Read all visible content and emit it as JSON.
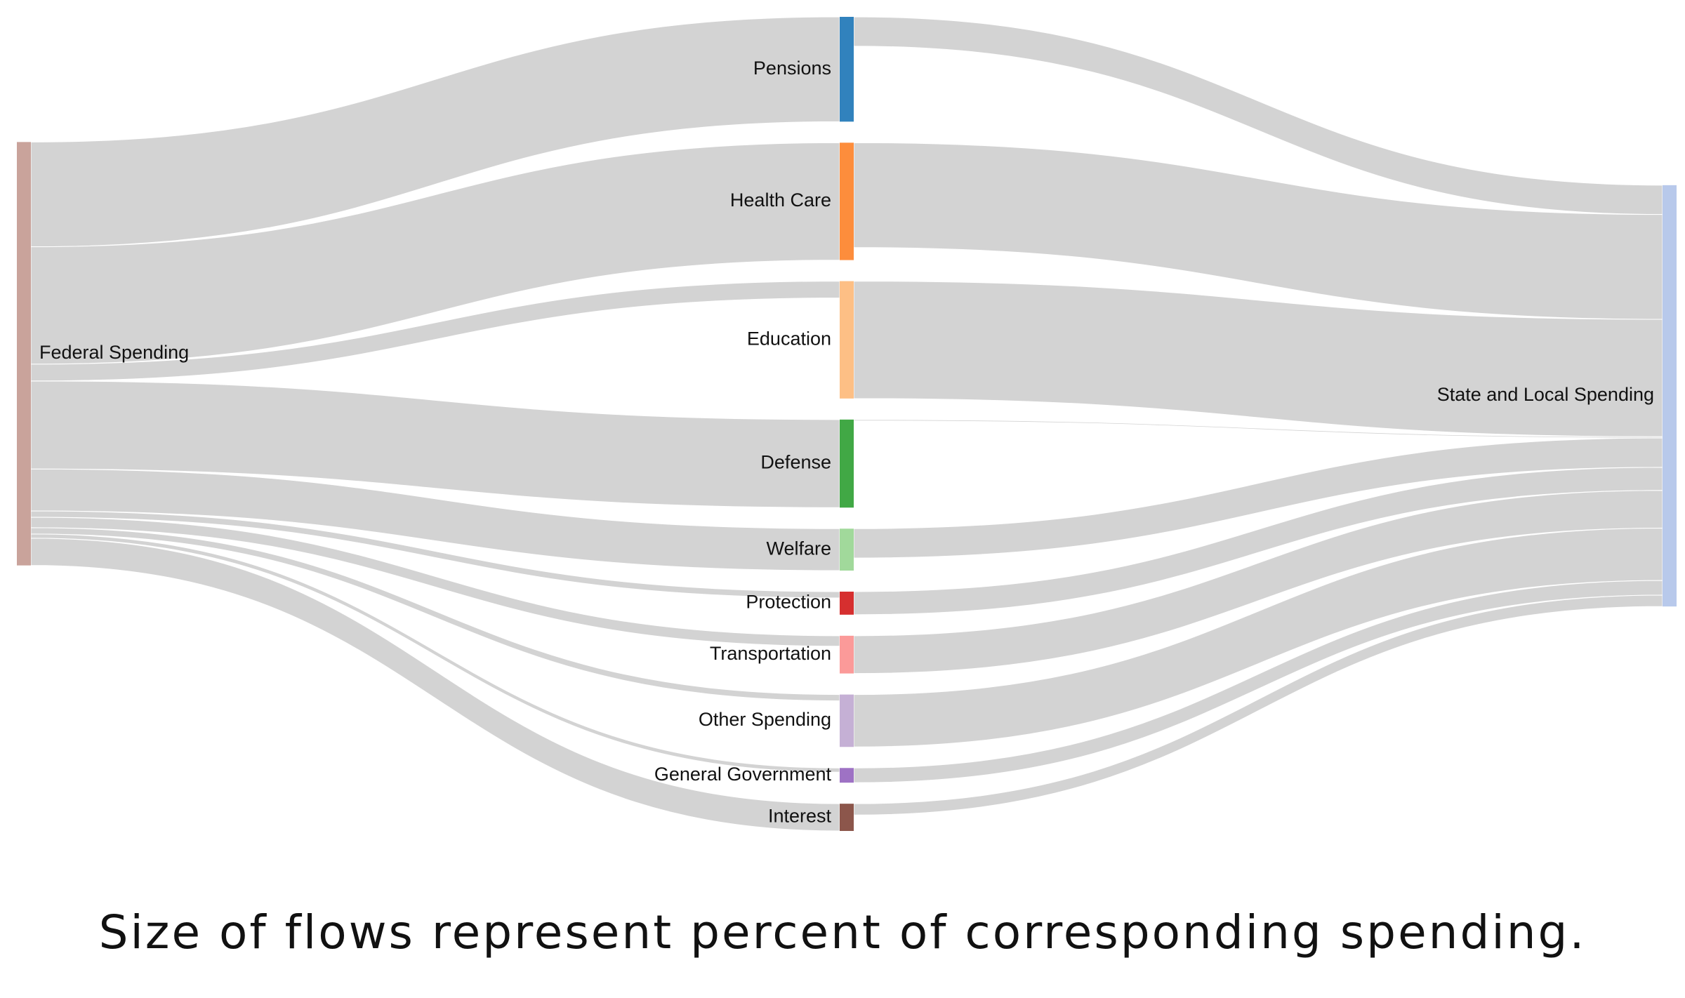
{
  "diagram": {
    "type": "sankey",
    "caption": "Size of flows represent percent of corresponding spending.",
    "link_color": "#d3d3d3",
    "sources": [
      {
        "id": "federal",
        "label": "Federal Spending",
        "color": "#c9a39b"
      }
    ],
    "categories": [
      {
        "id": "pensions",
        "label": "Pensions",
        "color": "#3182bd"
      },
      {
        "id": "health",
        "label": "Health Care",
        "color": "#fd8d3c"
      },
      {
        "id": "education",
        "label": "Education",
        "color": "#fdbf85"
      },
      {
        "id": "defense",
        "label": "Defense",
        "color": "#41a845"
      },
      {
        "id": "welfare",
        "label": "Welfare",
        "color": "#a1d99b"
      },
      {
        "id": "protection",
        "label": "Protection",
        "color": "#d62f2f"
      },
      {
        "id": "transportation",
        "label": "Transportation",
        "color": "#fb9a99"
      },
      {
        "id": "other",
        "label": "Other Spending",
        "color": "#c5b0d5"
      },
      {
        "id": "general",
        "label": "General Government",
        "color": "#9e72c4"
      },
      {
        "id": "interest",
        "label": "Interest",
        "color": "#8c564b"
      }
    ],
    "targets": [
      {
        "id": "statelocal",
        "label": "State and Local Spending",
        "color": "#b8c9eb"
      }
    ],
    "flows_federal": [
      {
        "to": "pensions",
        "value": 25.0
      },
      {
        "to": "health",
        "value": 28.0
      },
      {
        "to": "education",
        "value": 4.0
      },
      {
        "to": "defense",
        "value": 21.0
      },
      {
        "to": "welfare",
        "value": 10.0
      },
      {
        "to": "protection",
        "value": 1.5
      },
      {
        "to": "transportation",
        "value": 2.5
      },
      {
        "to": "other",
        "value": 1.5
      },
      {
        "to": "general",
        "value": 1.0
      },
      {
        "to": "interest",
        "value": 6.5
      }
    ],
    "flows_state": [
      {
        "from": "pensions",
        "value": 7.0
      },
      {
        "from": "health",
        "value": 25.0
      },
      {
        "from": "education",
        "value": 28.0
      },
      {
        "from": "defense",
        "value": 0.3
      },
      {
        "from": "welfare",
        "value": 7.0
      },
      {
        "from": "protection",
        "value": 5.5
      },
      {
        "from": "transportation",
        "value": 9.0
      },
      {
        "from": "other",
        "value": 12.5
      },
      {
        "from": "general",
        "value": 3.5
      },
      {
        "from": "interest",
        "value": 2.7
      }
    ]
  }
}
